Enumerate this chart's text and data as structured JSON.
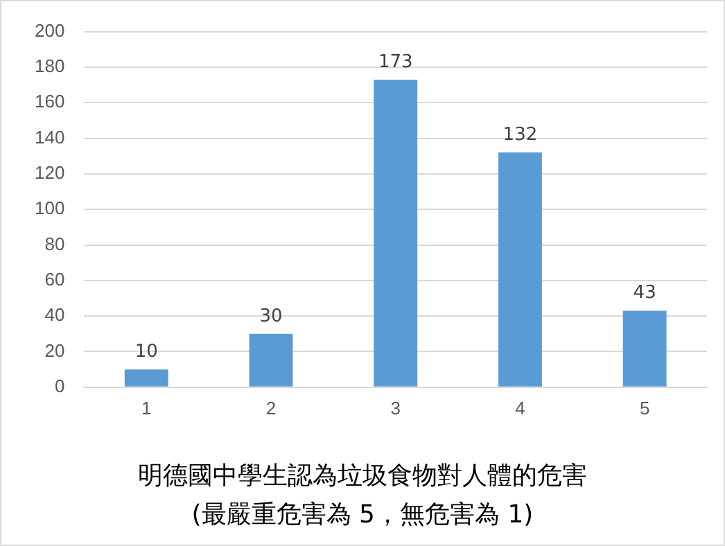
{
  "chart_data": {
    "type": "bar",
    "title": "明德國中學生認為垃圾食物對人體的危害",
    "subtitle": "(最嚴重危害為 5，無危害為 1)",
    "categories": [
      "1",
      "2",
      "3",
      "4",
      "5"
    ],
    "values": [
      10,
      30,
      173,
      132,
      43
    ],
    "color": "#5b9bd5",
    "ylim": [
      0,
      200
    ],
    "yticks": [
      0,
      20,
      40,
      60,
      80,
      100,
      120,
      140,
      160,
      180,
      200
    ],
    "grid": "y",
    "data_labels": true,
    "legend": false
  }
}
